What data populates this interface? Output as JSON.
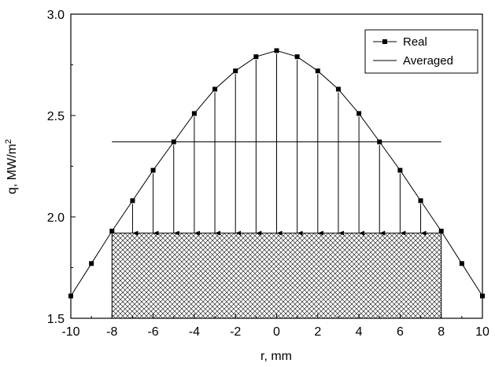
{
  "chart_data": {
    "type": "line",
    "xlabel": "r, mm",
    "ylabel": "q, MW/m",
    "ylabel_superscript": "2",
    "xlim": [
      -10,
      10
    ],
    "ylim": [
      1.5,
      3.0
    ],
    "xticks": [
      -10,
      -8,
      -6,
      -4,
      -2,
      0,
      2,
      4,
      6,
      8,
      10
    ],
    "xtick_labels": [
      "-10",
      "-8",
      "-6",
      "-4",
      "-2",
      "0",
      "2",
      "4",
      "6",
      "8",
      "10"
    ],
    "yticks": [
      1.5,
      2.0,
      2.5,
      3.0
    ],
    "ytick_labels": [
      "1.5",
      "2.0",
      "2.5",
      "3.0"
    ],
    "grid": false,
    "legend_position": "top-right",
    "series": [
      {
        "name": "Real",
        "style": "line-with-square-markers",
        "x": [
          -10,
          -9,
          -8,
          -7,
          -6,
          -5,
          -4,
          -3,
          -2,
          -1,
          0,
          1,
          2,
          3,
          4,
          5,
          6,
          7,
          8,
          9,
          10
        ],
        "y": [
          1.61,
          1.77,
          1.93,
          2.08,
          2.23,
          2.37,
          2.51,
          2.63,
          2.72,
          2.79,
          2.82,
          2.79,
          2.72,
          2.63,
          2.51,
          2.37,
          2.23,
          2.08,
          1.93,
          1.77,
          1.61
        ]
      },
      {
        "name": "Averaged",
        "style": "line",
        "x": [
          -8,
          8
        ],
        "y": [
          2.37,
          2.37
        ]
      }
    ],
    "arrows": {
      "x": [
        -7,
        -6,
        -5,
        -4,
        -3,
        -2,
        -1,
        0,
        1,
        2,
        3,
        4,
        5,
        6,
        7
      ],
      "to_y": 1.92
    },
    "hatched_region": {
      "x": [
        -8,
        8
      ],
      "y": [
        1.5,
        1.92
      ]
    }
  }
}
